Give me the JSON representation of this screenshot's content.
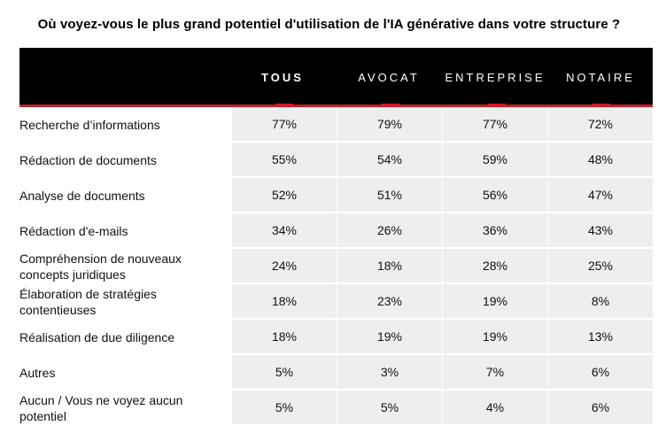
{
  "title": "Où voyez-vous le plus grand potentiel d'utilisation de l'IA générative dans votre structure ?",
  "columns": [
    "TOUS",
    "AVOCAT",
    "ENTREPRISE",
    "NOTAIRE"
  ],
  "rows": [
    {
      "label": "Recherche d’informations",
      "values": [
        "77%",
        "79%",
        "77%",
        "72%"
      ]
    },
    {
      "label": "Rédaction de documents",
      "values": [
        "55%",
        "54%",
        "59%",
        "48%"
      ]
    },
    {
      "label": "Analyse de documents",
      "values": [
        "52%",
        "51%",
        "56%",
        "47%"
      ]
    },
    {
      "label": "Rédaction d'e-mails",
      "values": [
        "34%",
        "26%",
        "36%",
        "43%"
      ]
    },
    {
      "label": "Compréhension de nouveaux concepts juridiques",
      "values": [
        "24%",
        "18%",
        "28%",
        "25%"
      ]
    },
    {
      "label": "Élaboration de stratégies contentieuses",
      "values": [
        "18%",
        "23%",
        "19%",
        "8%"
      ]
    },
    {
      "label": "Réalisation de due diligence",
      "values": [
        "18%",
        "19%",
        "19%",
        "13%"
      ]
    },
    {
      "label": "Autres",
      "values": [
        "5%",
        "3%",
        "7%",
        "6%"
      ]
    },
    {
      "label": "Aucun / Vous ne voyez aucun potentiel",
      "values": [
        "5%",
        "5%",
        "4%",
        "6%"
      ]
    }
  ],
  "colors": {
    "header_bg": "#000000",
    "accent": "#d01a2a",
    "cell_bg": "#eeeeee"
  }
}
